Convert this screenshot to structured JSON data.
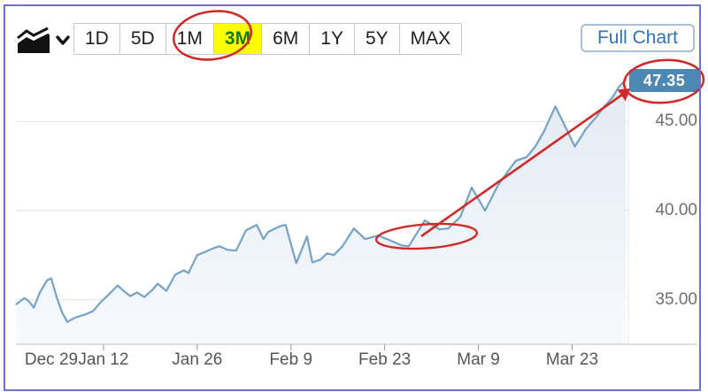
{
  "toolbar": {
    "chart_type_icon": "area-chart-icon",
    "chart_type_dropdown_icon": "chevron-down-icon",
    "ranges": [
      {
        "label": "1D",
        "active": false
      },
      {
        "label": "5D",
        "active": false
      },
      {
        "label": "1M",
        "active": false
      },
      {
        "label": "3M",
        "active": true
      },
      {
        "label": "6M",
        "active": false
      },
      {
        "label": "1Y",
        "active": false
      },
      {
        "label": "5Y",
        "active": false
      },
      {
        "label": "MAX",
        "active": false
      }
    ],
    "active_bg_color": "#ffff00",
    "active_text_color": "#157d15",
    "full_chart_label": "Full Chart",
    "full_chart_text_color": "#2e75b6"
  },
  "price_badge": {
    "value": "47.35",
    "bg_color": "#4d87b3"
  },
  "annotations": {
    "color": "#cf2b28",
    "items": [
      "circle-around-3m-range-button",
      "ellipse-around-breakout-dip",
      "arrow-from-dip-to-price-badge",
      "ellipse-around-price-badge"
    ]
  },
  "chart_data": {
    "type": "area",
    "title": "",
    "xlabel": "",
    "ylabel": "",
    "x_unit": "days since Dec 29",
    "ylim": [
      32.5,
      47.85
    ],
    "grid": true,
    "line_color": "#74a3c7",
    "fill_color_top": "#e2eaf3",
    "fill_color_bottom": "#f7fafd",
    "last_price": 47.35,
    "x_ticks": [
      {
        "label": "Dec 29",
        "day": 0
      },
      {
        "label": "Jan 12",
        "day": 14
      },
      {
        "label": "Jan 26",
        "day": 28
      },
      {
        "label": "Feb 9",
        "day": 42
      },
      {
        "label": "Feb 23",
        "day": 56
      },
      {
        "label": "Mar 9",
        "day": 70
      },
      {
        "label": "Mar 23",
        "day": 84
      }
    ],
    "y_ticks": [
      {
        "label": "35.00",
        "value": 35
      },
      {
        "label": "40.00",
        "value": 40
      },
      {
        "label": "45.00",
        "value": 45
      }
    ],
    "points": [
      [
        1.0,
        34.75
      ],
      [
        2.2,
        35.1
      ],
      [
        2.9,
        34.9
      ],
      [
        3.6,
        34.55
      ],
      [
        4.5,
        35.4
      ],
      [
        5.6,
        36.1
      ],
      [
        6.2,
        36.2
      ],
      [
        7.0,
        35.15
      ],
      [
        7.8,
        34.3
      ],
      [
        8.6,
        33.75
      ],
      [
        9.8,
        34.0
      ],
      [
        11.1,
        34.15
      ],
      [
        12.4,
        34.35
      ],
      [
        13.7,
        34.9
      ],
      [
        15.1,
        35.4
      ],
      [
        16.1,
        35.8
      ],
      [
        17.0,
        35.5
      ],
      [
        18.0,
        35.2
      ],
      [
        19.0,
        35.4
      ],
      [
        20.1,
        35.15
      ],
      [
        21.3,
        35.55
      ],
      [
        22.1,
        35.9
      ],
      [
        23.4,
        35.5
      ],
      [
        24.7,
        36.4
      ],
      [
        26.0,
        36.65
      ],
      [
        26.7,
        36.5
      ],
      [
        28.0,
        37.5
      ],
      [
        29.3,
        37.7
      ],
      [
        30.5,
        37.9
      ],
      [
        31.3,
        38.0
      ],
      [
        32.5,
        37.8
      ],
      [
        33.8,
        37.75
      ],
      [
        35.3,
        38.9
      ],
      [
        36.9,
        39.2
      ],
      [
        37.9,
        38.4
      ],
      [
        38.6,
        38.8
      ],
      [
        40.2,
        39.1
      ],
      [
        41.2,
        39.2
      ],
      [
        42.8,
        37.05
      ],
      [
        44.4,
        38.55
      ],
      [
        45.2,
        37.1
      ],
      [
        46.4,
        37.25
      ],
      [
        47.4,
        37.6
      ],
      [
        48.4,
        37.5
      ],
      [
        49.7,
        38.0
      ],
      [
        51.4,
        39.0
      ],
      [
        53.1,
        38.4
      ],
      [
        55.0,
        38.6
      ],
      [
        56.7,
        38.35
      ],
      [
        58.5,
        38.05
      ],
      [
        59.6,
        38.0
      ],
      [
        62.0,
        39.45
      ],
      [
        64.2,
        38.95
      ],
      [
        65.5,
        39.0
      ],
      [
        67.3,
        39.65
      ],
      [
        69.0,
        41.3
      ],
      [
        71.0,
        40.0
      ],
      [
        72.9,
        41.4
      ],
      [
        74.3,
        42.15
      ],
      [
        75.6,
        42.8
      ],
      [
        77.2,
        43.0
      ],
      [
        78.5,
        43.6
      ],
      [
        79.8,
        44.45
      ],
      [
        81.5,
        45.85
      ],
      [
        82.8,
        44.85
      ],
      [
        84.4,
        43.6
      ],
      [
        86.1,
        44.6
      ],
      [
        87.5,
        45.2
      ],
      [
        88.8,
        45.85
      ],
      [
        90.0,
        46.35
      ],
      [
        91.0,
        46.95
      ],
      [
        92.0,
        47.35
      ]
    ]
  }
}
